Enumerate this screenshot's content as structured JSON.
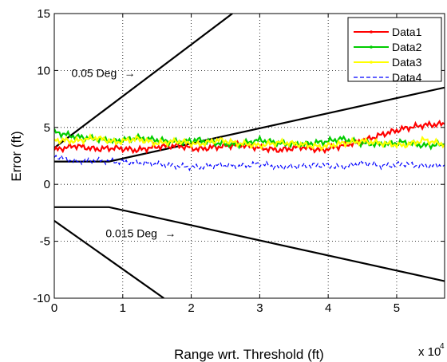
{
  "chart_data": {
    "type": "line",
    "title": "",
    "xlabel": "Range wrt. Threshold (ft)",
    "ylabel": "Error (ft)",
    "x_multiplier_label": "x 10",
    "x_multiplier_exponent": "4",
    "xlim": [
      0,
      57000
    ],
    "ylim": [
      -10,
      15
    ],
    "xticks": [
      0,
      10000,
      20000,
      30000,
      40000,
      50000
    ],
    "xtick_labels": [
      "0",
      "1",
      "2",
      "3",
      "4",
      "5"
    ],
    "yticks": [
      -10,
      -5,
      0,
      5,
      10,
      15
    ],
    "ytick_labels": [
      "-10",
      "-5",
      "0",
      "5",
      "10",
      "15"
    ],
    "grid": true,
    "legend_position": "top-right",
    "series": [
      {
        "name": "Data1",
        "color": "#ff0000",
        "style": "solid-dot",
        "x": [
          0,
          3000,
          6000,
          9000,
          12000,
          15000,
          18000,
          21000,
          24000,
          27000,
          30000,
          33000,
          36000,
          39000,
          42000,
          45000,
          48000,
          51000,
          54000,
          57000
        ],
        "y": [
          3.0,
          3.4,
          3.1,
          3.2,
          3.0,
          3.3,
          3.4,
          3.1,
          3.3,
          3.5,
          3.2,
          3.0,
          3.3,
          3.0,
          3.4,
          3.8,
          4.4,
          4.9,
          5.2,
          5.3
        ]
      },
      {
        "name": "Data2",
        "color": "#00cc00",
        "style": "solid-dot",
        "x": [
          0,
          3000,
          6000,
          9000,
          12000,
          15000,
          18000,
          21000,
          24000,
          27000,
          30000,
          33000,
          36000,
          39000,
          42000,
          45000,
          48000,
          51000,
          54000,
          57000
        ],
        "y": [
          4.6,
          4.2,
          4.0,
          3.8,
          4.1,
          3.9,
          3.7,
          3.9,
          3.6,
          3.5,
          3.9,
          3.6,
          3.5,
          3.7,
          4.0,
          3.6,
          3.5,
          3.7,
          3.4,
          3.5
        ]
      },
      {
        "name": "Data3",
        "color": "#ffff00",
        "style": "solid-dot",
        "x": [
          0,
          3000,
          6000,
          9000,
          12000,
          15000,
          18000,
          21000,
          24000,
          27000,
          30000,
          33000,
          36000,
          39000,
          42000,
          45000,
          48000,
          51000,
          54000,
          57000
        ],
        "y": [
          3.9,
          3.8,
          4.1,
          3.7,
          4.0,
          3.6,
          3.8,
          3.5,
          3.9,
          3.6,
          3.4,
          3.7,
          3.5,
          3.3,
          3.6,
          3.8,
          3.6,
          3.4,
          3.9,
          3.5
        ]
      },
      {
        "name": "Data4",
        "color": "#0000ff",
        "style": "dashed",
        "x": [
          0,
          3000,
          6000,
          9000,
          12000,
          15000,
          18000,
          21000,
          24000,
          27000,
          30000,
          33000,
          36000,
          39000,
          42000,
          45000,
          48000,
          51000,
          54000,
          57000
        ],
        "y": [
          2.5,
          2.0,
          2.1,
          2.0,
          1.9,
          1.8,
          1.6,
          1.5,
          1.7,
          1.6,
          1.8,
          1.5,
          1.6,
          1.7,
          1.5,
          1.9,
          1.6,
          1.8,
          1.6,
          1.7
        ]
      }
    ],
    "reference_lines": [
      {
        "color": "#000000",
        "x": [
          0,
          8000,
          57000
        ],
        "y": [
          2.0,
          2.0,
          8.5
        ]
      },
      {
        "color": "#000000",
        "x": [
          0,
          8000,
          57000
        ],
        "y": [
          -2.0,
          -2.0,
          -8.5
        ]
      },
      {
        "color": "#000000",
        "x": [
          0,
          26000
        ],
        "y": [
          3.2,
          15
        ]
      },
      {
        "color": "#000000",
        "x": [
          0,
          16000
        ],
        "y": [
          -3.2,
          -10
        ]
      }
    ],
    "annotations": [
      {
        "text": "0.05 Deg",
        "x": 2500,
        "y": 9.8
      },
      {
        "text": "0.015 Deg",
        "x": 7500,
        "y": -4.3
      }
    ]
  }
}
